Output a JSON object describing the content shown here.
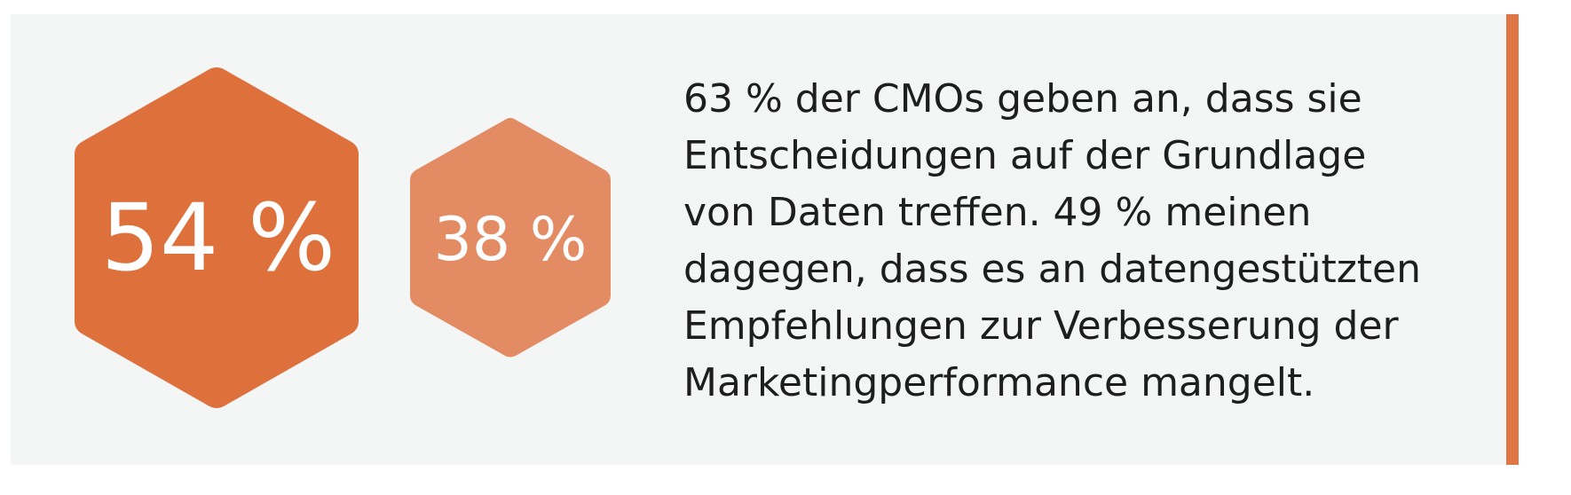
{
  "colors": {
    "panel_bg": "#f4f5f5",
    "hex_primary": "#de703c",
    "hex_secondary": "#e38b62",
    "accent_bar": "#e07545",
    "text": "#1e1e1e"
  },
  "stats": {
    "primary": {
      "value": 54,
      "label": "54 %"
    },
    "secondary": {
      "value": 38,
      "label": "38 %"
    }
  },
  "text": {
    "lines": [
      "63 % der CMOs geben an, dass sie",
      "Entscheidungen auf der Grundlage",
      "von Daten treffen. 49 % meinen",
      "dagegen, dass es an datengestützten",
      "Empfehlungen zur Verbesserung der",
      "Marketingperformance mangelt."
    ]
  }
}
